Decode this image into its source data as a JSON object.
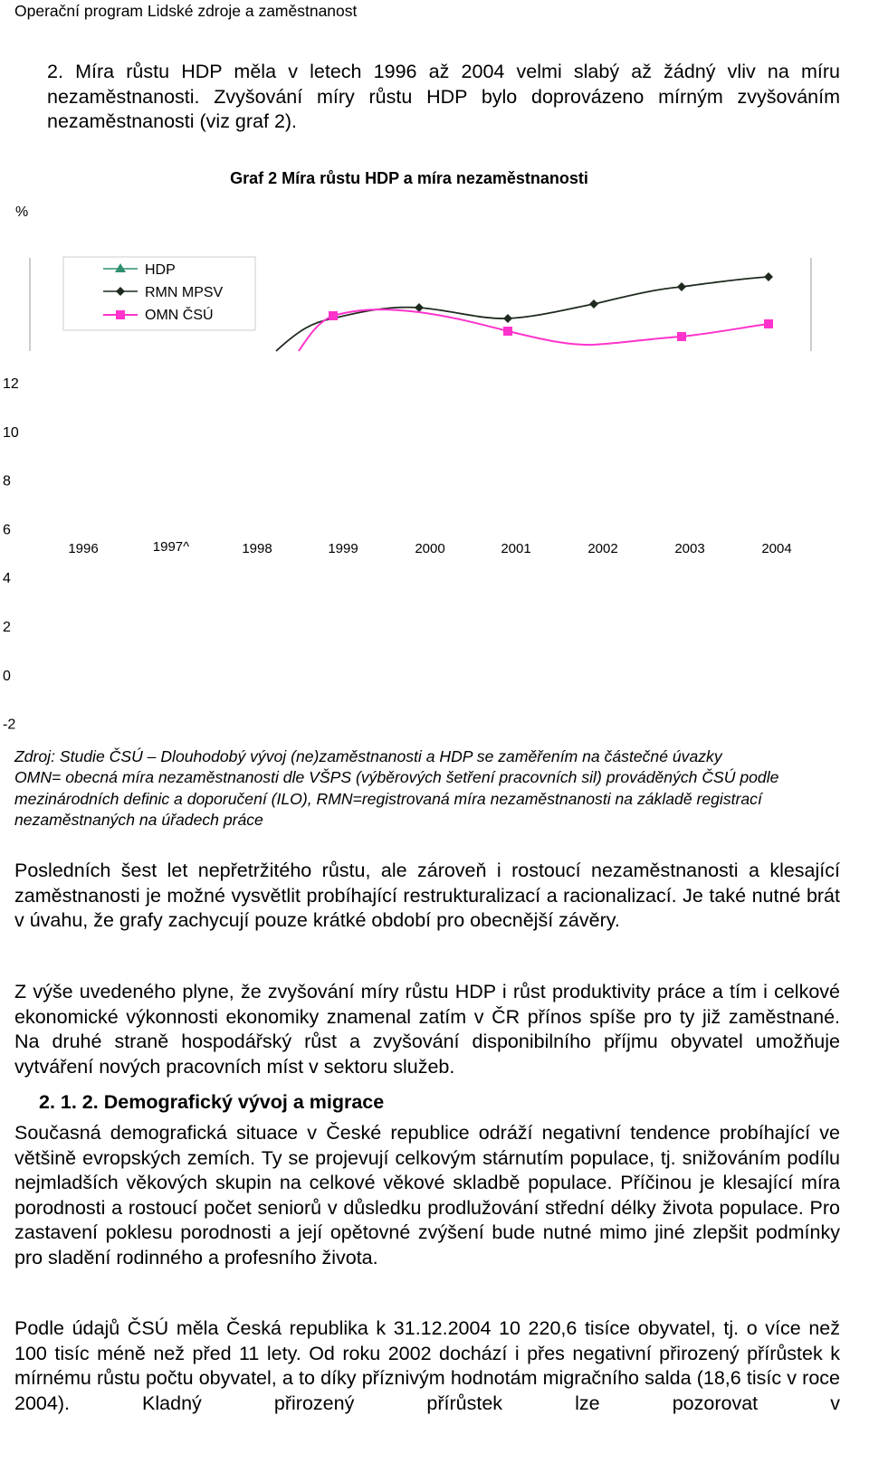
{
  "header": {
    "title": "Operační program Lidské zdroje a zaměstnanost"
  },
  "intro_item": "2. Míra růstu HDP měla v letech 1996 až 2004 velmi slabý až žádný vliv na míru nezaměstnanosti. Zvyšování míry růstu HDP bylo doprovázeno mírným zvyšováním nezaměstnanosti (viz graf 2).",
  "figure": {
    "title": "Graf 2 Míra růstu HDP a míra nezaměstnanosti",
    "unit_label": "%",
    "legend": [
      "HDP",
      "RMN MPSV",
      "OMN ČSÚ"
    ],
    "y_labels": [
      "12",
      "10",
      "8",
      "6",
      "4",
      "2",
      "0",
      "-2"
    ],
    "x_labels": [
      "1996",
      "1997^",
      "1998",
      "1999",
      "2000",
      "2001",
      "2002",
      "2003",
      "2004"
    ],
    "notes": [
      "Zdroj: Studie ČSÚ – Dlouhodobý vývoj (ne)zaměstnanosti a HDP se zaměřením na částečné úvazky",
      "OMN= obecná míra nezaměstnanosti dle VŠPS (výběrových šetření pracovních sil) prováděných ČSÚ podle mezinárodních definic a doporučení (ILO), RMN=registrovaná míra nezaměstnanosti na základě registrací nezaměstnaných na úřadech práce"
    ]
  },
  "paragraphs": [
    "Posledních šest let nepřetržitého růstu, ale zároveň i rostoucí nezaměstnanosti a klesající zaměstnanosti je možné vysvětlit probíhající restrukturalizací a racionalizací. Je také nutné brát v úvahu, že grafy zachycují pouze krátké období pro obecnější závěry.",
    "Z výše uvedeného plyne, že zvyšování míry růstu HDP i růst produktivity práce a tím i celkové ekonomické výkonnosti ekonomiky znamenal zatím v ČR přínos spíše pro ty již zaměstnané. Na druhé straně hospodářský růst a zvyšování disponibilního příjmu obyvatel umožňuje vytváření nových pracovních míst v sektoru služeb."
  ],
  "section": {
    "heading": "2. 1. 2. Demografický vývoj a migrace",
    "paragraphs": [
      "Současná demografická situace v České republice odráží negativní tendence probíhající ve většině evropských zemích. Ty se projevují celkovým stárnutím populace, tj. snižováním podílu nejmladších věkových skupin na celkové věkové skladbě populace. Příčinou je klesající míra porodnosti a rostoucí počet seniorů v důsledku prodlužování střední délky života populace. Pro zastavení poklesu porodnosti a její opětovné zvýšení bude nutné mimo jiné zlepšit podmínky pro sladění rodinného a profesního života.",
      "Podle údajů ČSÚ měla Česká republika k 31.12.2004 10 220,6 tisíce obyvatel, tj. o více než 100 tisíc méně než před 11 lety. Od roku 2002 dochází i přes negativní přirozený přírůstek k mírnému růstu počtu obyvatel, a to díky příznivým hodnotám migračního salda (18,6 tisíc v roce 2004). Kladný přirozený přírůstek lze pozorovat v"
    ]
  }
}
